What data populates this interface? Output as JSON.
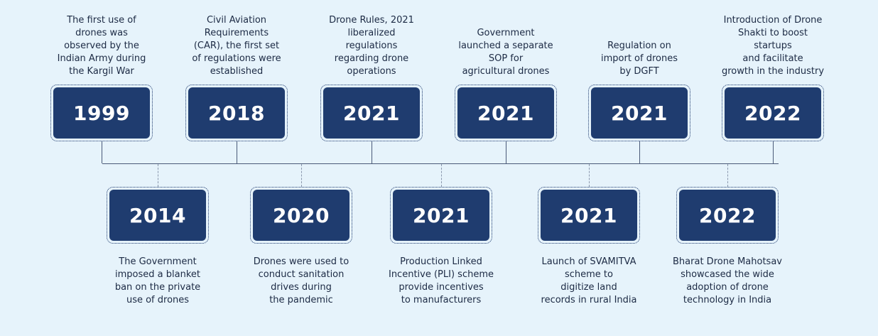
{
  "colors": {
    "background": "#e6f3fb",
    "box": "#1f3c6f",
    "box_text": "#ffffff",
    "line": "#4a5a78",
    "text": "#1c2a44"
  },
  "top_events": [
    {
      "year": "1999",
      "description": "The first use of\ndrones was\nobserved by the\nIndian Army during\nthe Kargil War"
    },
    {
      "year": "2018",
      "description": "Civil Aviation\nRequirements\n(CAR), the first set\nof regulations were\nestablished"
    },
    {
      "year": "2021",
      "description": "Drone Rules, 2021\nliberalized\nregulations\nregarding drone\noperations"
    },
    {
      "year": "2021",
      "description": "Government\nlaunched a separate\nSOP for\nagricultural drones"
    },
    {
      "year": "2021",
      "description": "Regulation on\nimport of drones\nby DGFT"
    },
    {
      "year": "2022",
      "description": "Introduction of Drone\nShakti to boost\nstartups\nand facilitate\ngrowth in the industry"
    }
  ],
  "bottom_events": [
    {
      "year": "2014",
      "description": "The Government\nimposed a blanket\nban on the private\nuse of drones"
    },
    {
      "year": "2020",
      "description": "Drones were used to\nconduct sanitation\ndrives during\nthe pandemic"
    },
    {
      "year": "2021",
      "description": "Production Linked\nIncentive (PLI) scheme\nprovide incentives\nto manufacturers"
    },
    {
      "year": "2021",
      "description": "Launch of SVAMITVA\nscheme to\ndigitize land\nrecords in rural India"
    },
    {
      "year": "2022",
      "description": "Bharat Drone Mahotsav\nshowcased the wide\nadoption of drone\ntechnology in India"
    }
  ]
}
